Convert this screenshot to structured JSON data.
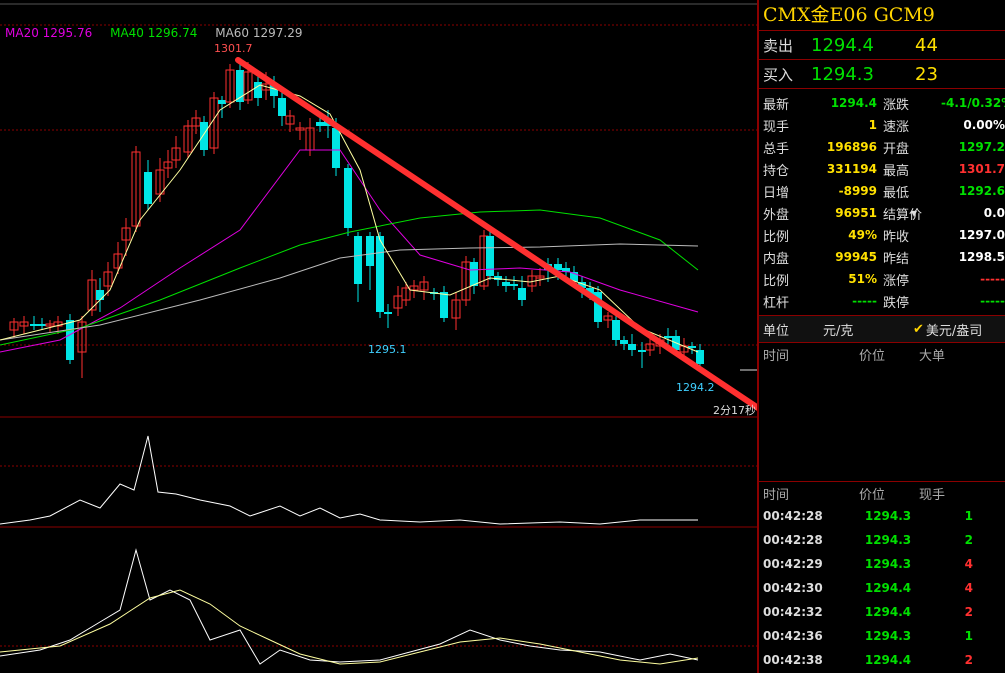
{
  "indicators": {
    "ma20": "MA20 1295.76",
    "ma40": "MA40 1296.74",
    "ma60": "MA60 1297.29"
  },
  "chart_labels": {
    "high": "1301.7",
    "low1": "1295.1",
    "low2": "1294.2",
    "timer": "2分17秒"
  },
  "panel": {
    "title": "CMX金E06  GCM9",
    "ask": {
      "label": "卖出",
      "price": "1294.4",
      "qty": "44"
    },
    "bid": {
      "label": "买入",
      "price": "1294.3",
      "qty": "23"
    },
    "stats": [
      {
        "l": "最新",
        "v": "1294.4",
        "vc": "#00e000",
        "l2": "涨跌",
        "v2": "-4.1/0.32%",
        "v2c": "#00e000"
      },
      {
        "l": "现手",
        "v": "1",
        "vc": "#ffe000",
        "l2": "速涨",
        "v2": "0.00%",
        "v2c": "#ffffff"
      },
      {
        "l": "总手",
        "v": "196896",
        "vc": "#ffe000",
        "l2": "开盘",
        "v2": "1297.2",
        "v2c": "#00e000"
      },
      {
        "l": "持仓",
        "v": "331194",
        "vc": "#ffe000",
        "l2": "最高",
        "v2": "1301.7",
        "v2c": "#ff3030"
      },
      {
        "l": "日增",
        "v": "-8999",
        "vc": "#ffe000",
        "l2": "最低",
        "v2": "1292.6",
        "v2c": "#00e000"
      },
      {
        "l": "外盘",
        "v": "96951",
        "vc": "#ffe000",
        "l2": "结算价",
        "v2": "0.0",
        "v2c": "#ffffff"
      },
      {
        "l": "比例",
        "v": "49%",
        "vc": "#ffe000",
        "l2": "昨收",
        "v2": "1297.0",
        "v2c": "#ffffff"
      },
      {
        "l": "内盘",
        "v": "99945",
        "vc": "#ffe000",
        "l2": "昨结",
        "v2": "1298.5",
        "v2c": "#ffffff"
      },
      {
        "l": "比例",
        "v": "51%",
        "vc": "#ffe000",
        "l2": "涨停",
        "v2": "-----",
        "v2c": "#ff3030"
      },
      {
        "l": "杠杆",
        "v": "-----",
        "vc": "#00e000",
        "l2": "跌停",
        "v2": "-----",
        "v2c": "#00e000"
      }
    ],
    "unit": {
      "label": "单位",
      "opt1": "元/克",
      "opt2": "美元/盎司"
    },
    "big_header": {
      "time": "时间",
      "price": "价位",
      "size": "大单"
    },
    "tick_header": {
      "time": "时间",
      "price": "价位",
      "size": "现手"
    },
    "ticks": [
      {
        "time": "00:42:28",
        "price": "1294.3",
        "qty": "1",
        "qc": "#00e000"
      },
      {
        "time": "00:42:28",
        "price": "1294.3",
        "qty": "2",
        "qc": "#00e000"
      },
      {
        "time": "00:42:29",
        "price": "1294.3",
        "qty": "4",
        "qc": "#ff3030"
      },
      {
        "time": "00:42:30",
        "price": "1294.4",
        "qty": "4",
        "qc": "#ff3030"
      },
      {
        "time": "00:42:32",
        "price": "1294.4",
        "qty": "2",
        "qc": "#ff3030"
      },
      {
        "time": "00:42:36",
        "price": "1294.3",
        "qty": "1",
        "qc": "#00e000"
      },
      {
        "time": "00:42:38",
        "price": "1294.4",
        "qty": "2",
        "qc": "#ff3030"
      }
    ]
  },
  "colors": {
    "up": "#ff3030",
    "down": "#00e5e5",
    "ma20": "#e000e0",
    "ma40": "#00e000",
    "ma60": "#bbbbbb",
    "ma5": "#ffffa0",
    "grid": "#8b0000",
    "arrow": "#ff3030"
  }
}
